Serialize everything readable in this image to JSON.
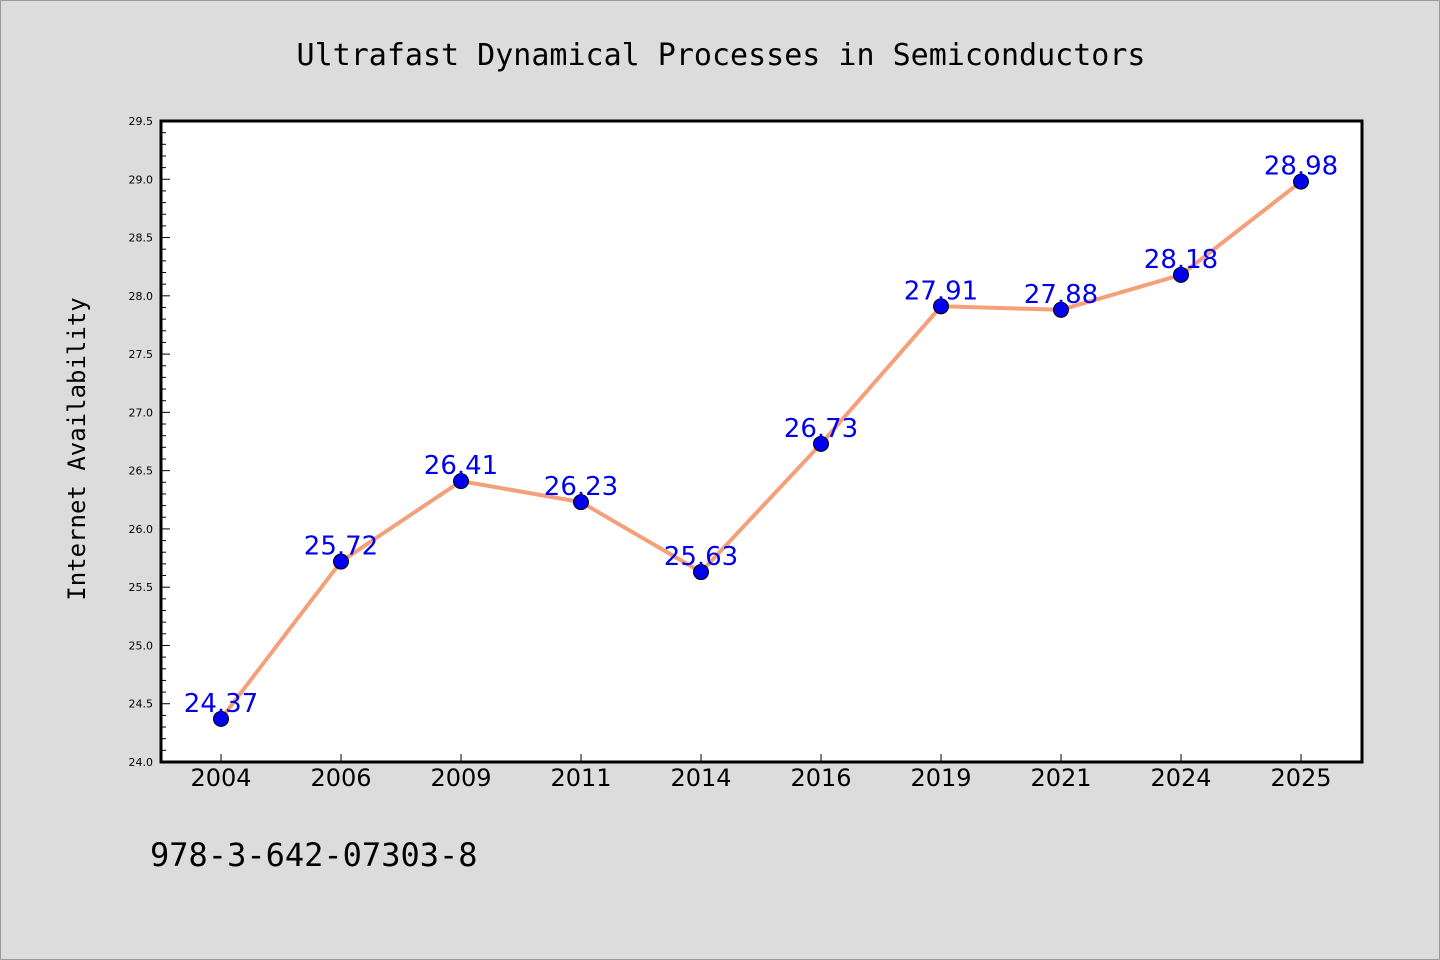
{
  "chart_data": {
    "type": "line",
    "title": "Ultrafast Dynamical Processes in Semiconductors",
    "xlabel": "",
    "ylabel": "Internet Availability",
    "categories": [
      "2004",
      "2006",
      "2009",
      "2011",
      "2014",
      "2016",
      "2019",
      "2021",
      "2024",
      "2025"
    ],
    "series": [
      {
        "values": [
          24.37,
          25.72,
          26.41,
          26.23,
          25.63,
          26.73,
          27.91,
          27.88,
          28.18,
          28.98
        ],
        "line_color": "#f4a07a",
        "marker_color": "#0000ee"
      }
    ],
    "data_labels": [
      "24.37",
      "25.72",
      "26.41",
      "26.23",
      "25.63",
      "26.73",
      "27.91",
      "27.88",
      "28.18",
      "28.98"
    ],
    "data_label_color": "#0000ee",
    "ylim": [
      24.0,
      29.5
    ],
    "yticks": [
      24.0,
      24.5,
      25.0,
      25.5,
      26.0,
      26.5,
      27.0,
      27.5,
      28.0,
      28.5,
      29.0,
      29.5
    ],
    "ytick_labels": [
      "24.0",
      "24.5",
      "25.0",
      "25.5",
      "26.0",
      "26.5",
      "27.0",
      "27.5",
      "28.0",
      "28.5",
      "29.0",
      "29.5"
    ],
    "grid": false,
    "legend": "none"
  },
  "footer": {
    "isbn": "978-3-642-07303-8"
  },
  "colors": {
    "background": "#dcdcdc",
    "plot_background": "#ffffff",
    "axis": "#000000"
  }
}
